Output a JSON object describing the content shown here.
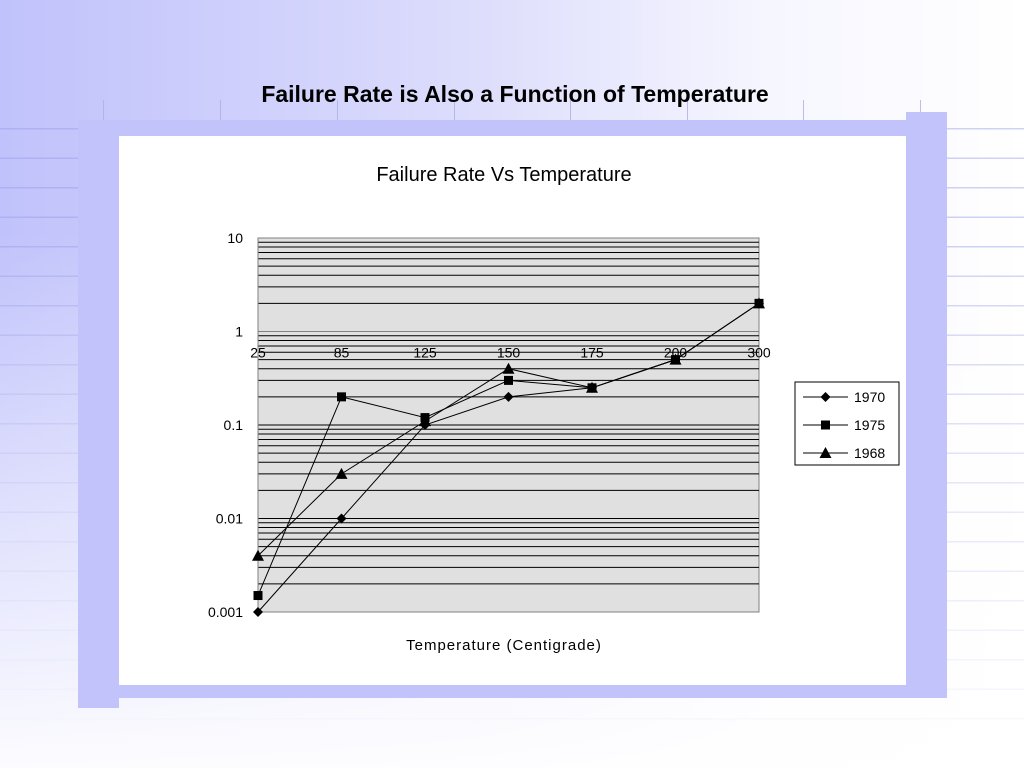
{
  "slide": {
    "title": "Failure Rate is Also a Function of Temperature"
  },
  "chart_data": {
    "type": "line",
    "title": "Failure Rate Vs Temperature",
    "xlabel": "Temperature (Centigrade)",
    "ylabel": "",
    "y_scale": "log",
    "ylim": [
      0.001,
      10
    ],
    "y_tick_labels": [
      "10",
      "1",
      "0.1",
      "0.01",
      "0.001"
    ],
    "categories": [
      "25",
      "85",
      "125",
      "150",
      "175",
      "200",
      "300"
    ],
    "series": [
      {
        "name": "1970",
        "marker": "diamond",
        "values": [
          0.001,
          0.01,
          0.1,
          0.2,
          0.25,
          0.5,
          2
        ]
      },
      {
        "name": "1975",
        "marker": "square",
        "values": [
          0.0015,
          0.2,
          0.12,
          0.3,
          0.25,
          0.5,
          2
        ]
      },
      {
        "name": "1968",
        "marker": "triangle",
        "values": [
          0.004,
          0.03,
          0.11,
          0.4,
          0.25,
          0.5,
          2
        ]
      }
    ],
    "legend_position": "right",
    "grid": true,
    "plot_background": "#e0e0e0"
  }
}
